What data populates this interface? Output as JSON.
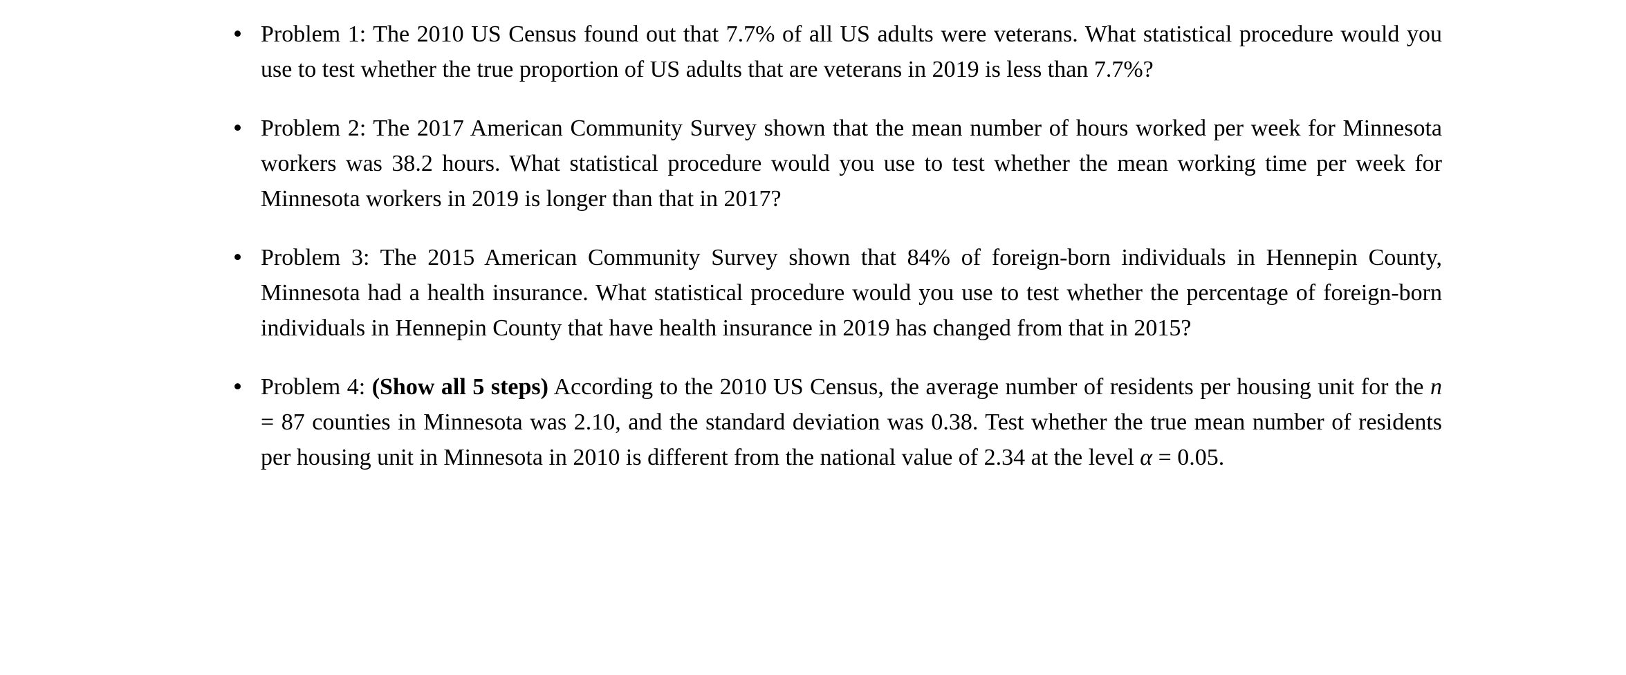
{
  "page": {
    "background": "#ffffff",
    "text_color": "#000000",
    "bullet": "•"
  },
  "problems": [
    {
      "id": "problem-1",
      "segments": [
        {
          "text": "Problem 1: The 2010 US Census found out that 7.7% of all US adults were veterans. What statistical procedure would you use to test whether the true proportion of US adults that are veterans in 2019 is less than 7.7%?",
          "style": "normal"
        }
      ]
    },
    {
      "id": "problem-2",
      "segments": [
        {
          "text": "Problem 2: The 2017 American Community Survey shown that the mean number of hours worked per week for Minnesota workers was 38.2 hours. What statistical procedure would you use to test whether the mean working time per week for Minnesota workers in 2019 is longer than that in 2017?",
          "style": "normal"
        }
      ]
    },
    {
      "id": "problem-3",
      "segments": [
        {
          "text": "Problem 3: The 2015 American Community Survey shown that 84% of foreign-born individuals in Hennepin County, Minnesota had a health insurance. What statistical procedure would you use to test whether the percentage of foreign-born individuals in Hennepin County that have health insurance in 2019 has changed from that in 2015?",
          "style": "normal"
        }
      ]
    },
    {
      "id": "problem-4",
      "segments": [
        {
          "text": "Problem 4: ",
          "style": "normal"
        },
        {
          "text": "(Show all 5 steps)",
          "style": "bold"
        },
        {
          "text": " According to the 2010 US Census, the average number of residents per housing unit for the ",
          "style": "normal"
        },
        {
          "text": "n",
          "style": "math-italic"
        },
        {
          "text": " = 87 counties in Minnesota was 2.10, and the standard deviation was 0.38. Test whether the true mean number of residents per housing unit in Minnesota in 2010 is different from the national value of 2.34 at the level ",
          "style": "normal"
        },
        {
          "text": "α",
          "style": "math-italic"
        },
        {
          "text": " = 0.05.",
          "style": "normal"
        }
      ]
    }
  ]
}
